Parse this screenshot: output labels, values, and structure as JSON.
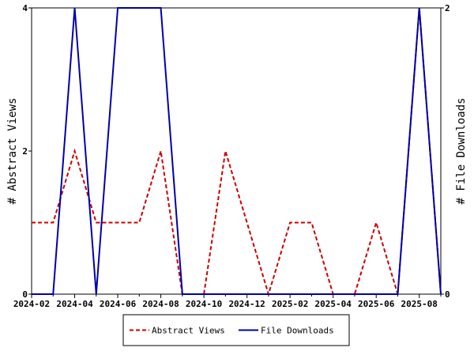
{
  "chart_data": {
    "type": "line",
    "categories": [
      "2024-02",
      null,
      "2024-04",
      null,
      "2024-06",
      null,
      "2024-08",
      null,
      "2024-10",
      null,
      "2024-12",
      null,
      "2025-02",
      null,
      "2025-04",
      null,
      "2025-06",
      null,
      "2025-08",
      null
    ],
    "series": [
      {
        "name": "Abstract Views",
        "color": "#cc0000",
        "dash": true,
        "values": [
          1,
          1,
          2,
          1,
          1,
          1,
          2,
          0,
          0,
          2,
          1,
          0,
          1,
          1,
          0,
          0,
          1,
          0,
          4,
          0
        ]
      },
      {
        "name": "File Downloads",
        "color": "#0000aa",
        "axis": "y2",
        "values": [
          0,
          0,
          2,
          0,
          2,
          2,
          2,
          0,
          0,
          0,
          0,
          0,
          0,
          0,
          0,
          0,
          0,
          0,
          2,
          0
        ]
      }
    ],
    "ylabel": "# Abstract Views",
    "y2label": "# File Downloads",
    "ylim": [
      0,
      4
    ],
    "yticks": [
      0,
      2,
      4
    ],
    "y2lim": [
      0,
      2
    ],
    "y2ticks": [
      0,
      2
    ],
    "legend": "bottom"
  }
}
